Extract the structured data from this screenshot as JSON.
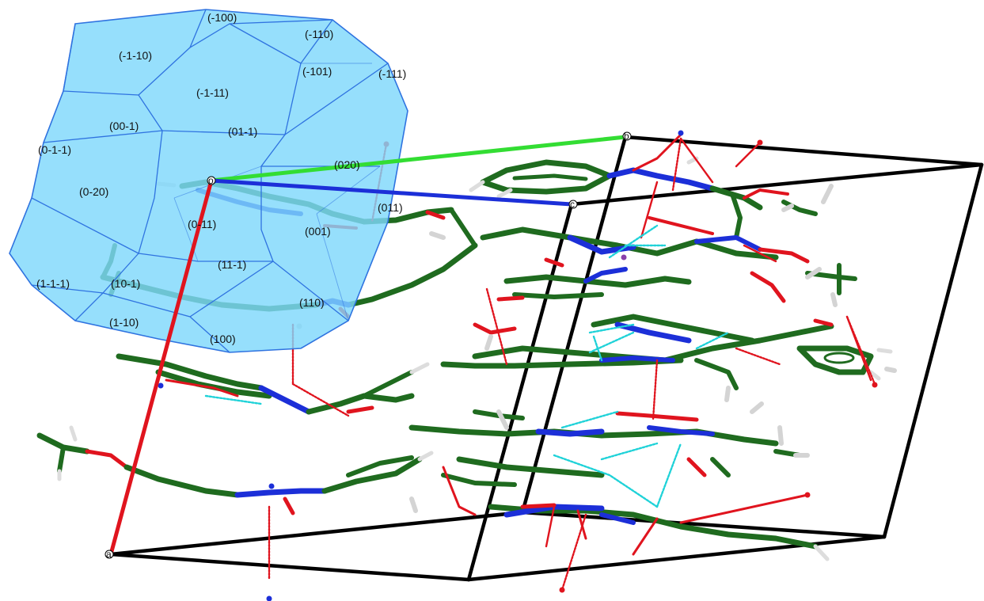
{
  "crystal_faces": [
    {
      "label": "(-100)"
    },
    {
      "label": "(-110)"
    },
    {
      "label": "(-1-10)"
    },
    {
      "label": "(-101)"
    },
    {
      "label": "(-111)"
    },
    {
      "label": "(-1-11)"
    },
    {
      "label": "(00-1)"
    },
    {
      "label": "(01-1)"
    },
    {
      "label": "(0-1-1)"
    },
    {
      "label": "(020)"
    },
    {
      "label": "(0-20)"
    },
    {
      "label": "(011)"
    },
    {
      "label": "(0-11)"
    },
    {
      "label": "(001)"
    },
    {
      "label": "(11-1)"
    },
    {
      "label": "(1-1-1)"
    },
    {
      "label": "(10-1)"
    },
    {
      "label": "(110)"
    },
    {
      "label": "(1-10)"
    },
    {
      "label": "(100)"
    }
  ],
  "unit_cell_axes": {
    "a": "a",
    "b": "b",
    "c": "c",
    "origin": "o"
  },
  "colors": {
    "morphology_fill": "#7fd8fb",
    "morphology_edge": "#2f73e0",
    "carbon": "#1f6b1f",
    "nitrogen": "#1c2fd8",
    "oxygen": "#e0141e",
    "hydrogen": "#d8d8d8",
    "cell_edge": "#000000",
    "axis_a": "#e0141e",
    "axis_b": "#33dd33",
    "axis_c": "#1c2fd8",
    "hbond": "#1fd2d8",
    "contact": "#e0141e"
  }
}
